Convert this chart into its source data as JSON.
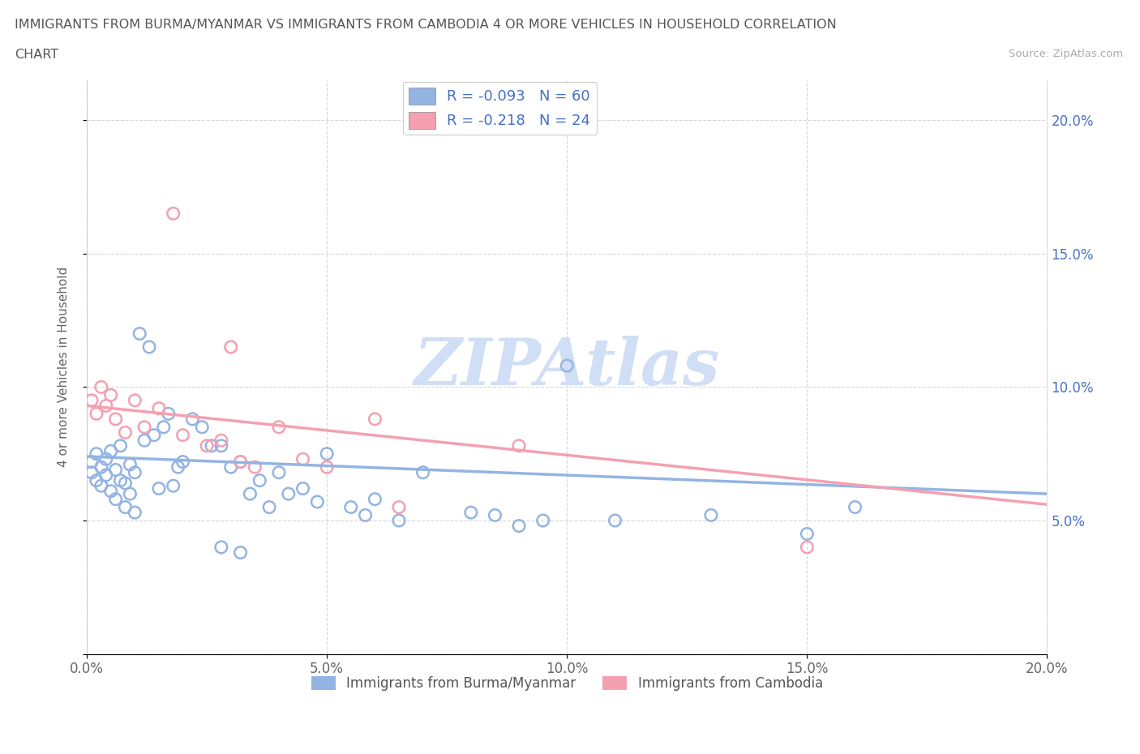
{
  "title_line1": "IMMIGRANTS FROM BURMA/MYANMAR VS IMMIGRANTS FROM CAMBODIA 4 OR MORE VEHICLES IN HOUSEHOLD CORRELATION",
  "title_line2": "CHART",
  "source": "Source: ZipAtlas.com",
  "ylabel": "4 or more Vehicles in Household",
  "xlim": [
    0.0,
    0.2
  ],
  "ylim": [
    0.0,
    0.215
  ],
  "xticks": [
    0.0,
    0.05,
    0.1,
    0.15,
    0.2
  ],
  "yticks": [
    0.0,
    0.05,
    0.1,
    0.15,
    0.2
  ],
  "xtick_labels": [
    "0.0%",
    "5.0%",
    "10.0%",
    "15.0%",
    "20.0%"
  ],
  "right_ytick_labels": [
    "",
    "5.0%",
    "10.0%",
    "15.0%",
    "20.0%"
  ],
  "color_burma": "#93b4e3",
  "color_cambodia": "#f4a0b0",
  "R_burma": -0.093,
  "N_burma": 60,
  "R_cambodia": -0.218,
  "N_cambodia": 24,
  "watermark": "ZIPAtlas",
  "watermark_color": "#d0dff5",
  "legend_label_burma": "Immigrants from Burma/Myanmar",
  "legend_label_cambodia": "Immigrants from Cambodia",
  "burma_x": [
    0.001,
    0.001,
    0.002,
    0.002,
    0.003,
    0.003,
    0.004,
    0.004,
    0.005,
    0.005,
    0.006,
    0.006,
    0.007,
    0.007,
    0.008,
    0.008,
    0.009,
    0.009,
    0.01,
    0.01,
    0.011,
    0.012,
    0.013,
    0.014,
    0.015,
    0.016,
    0.017,
    0.018,
    0.019,
    0.02,
    0.022,
    0.024,
    0.026,
    0.028,
    0.03,
    0.032,
    0.034,
    0.036,
    0.038,
    0.04,
    0.042,
    0.045,
    0.048,
    0.05,
    0.055,
    0.058,
    0.06,
    0.065,
    0.07,
    0.08,
    0.085,
    0.09,
    0.095,
    0.1,
    0.11,
    0.13,
    0.15,
    0.16,
    0.028,
    0.032
  ],
  "burma_y": [
    0.068,
    0.072,
    0.075,
    0.065,
    0.07,
    0.063,
    0.073,
    0.067,
    0.076,
    0.061,
    0.069,
    0.058,
    0.065,
    0.078,
    0.064,
    0.055,
    0.071,
    0.06,
    0.068,
    0.053,
    0.12,
    0.08,
    0.115,
    0.082,
    0.062,
    0.085,
    0.09,
    0.063,
    0.07,
    0.072,
    0.088,
    0.085,
    0.078,
    0.078,
    0.07,
    0.072,
    0.06,
    0.065,
    0.055,
    0.068,
    0.06,
    0.062,
    0.057,
    0.075,
    0.055,
    0.052,
    0.058,
    0.05,
    0.068,
    0.053,
    0.052,
    0.048,
    0.05,
    0.108,
    0.05,
    0.052,
    0.045,
    0.055,
    0.04,
    0.038
  ],
  "cambodia_x": [
    0.001,
    0.002,
    0.003,
    0.004,
    0.005,
    0.006,
    0.008,
    0.01,
    0.012,
    0.015,
    0.018,
    0.02,
    0.025,
    0.028,
    0.032,
    0.035,
    0.04,
    0.045,
    0.05,
    0.06,
    0.065,
    0.09,
    0.15,
    0.03
  ],
  "cambodia_y": [
    0.095,
    0.09,
    0.1,
    0.093,
    0.097,
    0.088,
    0.083,
    0.095,
    0.085,
    0.092,
    0.165,
    0.082,
    0.078,
    0.08,
    0.072,
    0.07,
    0.085,
    0.073,
    0.07,
    0.088,
    0.055,
    0.078,
    0.04,
    0.115
  ],
  "burma_trend_x": [
    0.0,
    0.2
  ],
  "burma_trend_y": [
    0.074,
    0.06
  ],
  "cambodia_trend_x": [
    0.0,
    0.2
  ],
  "cambodia_trend_y": [
    0.093,
    0.056
  ]
}
